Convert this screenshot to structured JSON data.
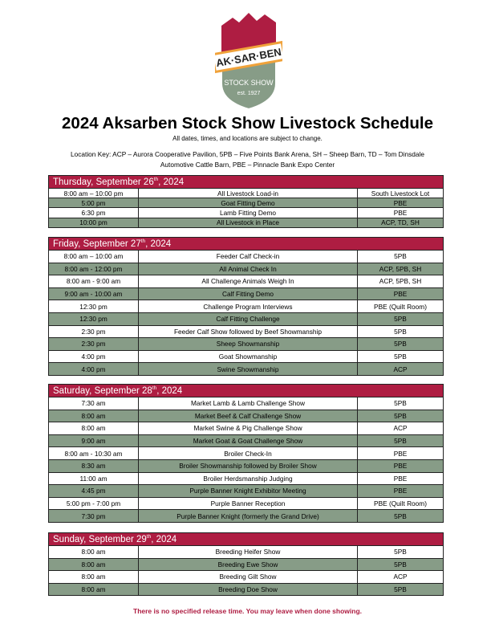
{
  "logo": {
    "text": "AK-SAR-BEN",
    "line2": "STOCK SHOW",
    "line3": "est. 1927",
    "colors": {
      "red": "#ae1d42",
      "green": "#879c87",
      "orange": "#f0a23a"
    }
  },
  "title": "2024 Aksarben Stock Show Livestock Schedule",
  "subtitle": "All dates, times, and locations are subject to change.",
  "location_key": {
    "line1": "Location Key: ACP – Aurora Cooperative Pavilion, 5PB – Five Points Bank Arena, SH – Sheep Barn, TD – Tom Dinsdale",
    "line2": "Automotive Cattle Barn, PBE – Pinnacle Bank Expo Center"
  },
  "days": [
    {
      "name": "Thursday, September 26",
      "sup": "th",
      "year": ", 2024",
      "rows": [
        {
          "time": "8:00 am – 10:00 pm",
          "event": "All Livestock Load-in",
          "location": "South Livestock Lot"
        },
        {
          "time": "5:00 pm",
          "event": "Goat Fitting Demo",
          "location": "PBE"
        },
        {
          "time": "6:30 pm",
          "event": "Lamb Fitting Demo",
          "location": "PBE"
        },
        {
          "time": "10:00 pm",
          "event": "All Livestock in Place",
          "location": "ACP, TD, SH"
        }
      ]
    },
    {
      "name": "Friday, September 27",
      "sup": "th",
      "year": ", 2024",
      "rows": [
        {
          "time": "8:00 am – 10:00 am",
          "event": "Feeder Calf Check-in",
          "location": "5PB"
        },
        {
          "time": "8:00 am - 12:00 pm",
          "event": "All Animal Check In",
          "location": "ACP, 5PB, SH"
        },
        {
          "time": "8:00 am - 9:00 am",
          "event": "All Challenge Animals Weigh In",
          "location": "ACP, 5PB, SH"
        },
        {
          "time": "9:00 am - 10:00 am",
          "event": "Calf Fitting Demo",
          "location": "PBE"
        },
        {
          "time": "12:30 pm",
          "event": "Challenge Program Interviews",
          "location": "PBE (Quilt Room)"
        },
        {
          "time": "12:30 pm",
          "event": "Calf Fitting Challenge",
          "location": "5PB"
        },
        {
          "time": "2:30 pm",
          "event": "Feeder Calf Show followed by Beef Showmanship",
          "location": "5PB"
        },
        {
          "time": "2:30 pm",
          "event": "Sheep Showmanship",
          "location": "5PB"
        },
        {
          "time": "4:00 pm",
          "event": "Goat Showmanship",
          "location": "5PB"
        },
        {
          "time": "4:00 pm",
          "event": "Swine Showmanship",
          "location": "ACP"
        }
      ]
    },
    {
      "name": "Saturday, September 28",
      "sup": "th",
      "year": ", 2024",
      "rows": [
        {
          "time": "7:30 am",
          "event": "Market Lamb & Lamb Challenge Show",
          "location": "5PB"
        },
        {
          "time": "8:00 am",
          "event": "Market Beef & Calf Challenge Show",
          "location": "5PB"
        },
        {
          "time": "8:00 am",
          "event": "Market Swine & Pig Challenge Show",
          "location": "ACP"
        },
        {
          "time": "9:00 am",
          "event": "Market Goat & Goat Challenge Show",
          "location": "5PB"
        },
        {
          "time": "8:00 am - 10:30 am",
          "event": "Broiler Check-In",
          "location": "PBE"
        },
        {
          "time": "8:30 am",
          "event": "Broiler Showmanship followed by Broiler Show",
          "location": "PBE"
        },
        {
          "time": "11:00 am",
          "event": "Broiler Herdsmanship Judging",
          "location": "PBE"
        },
        {
          "time": "4:45 pm",
          "event": "Purple Banner Knight Exhibitor Meeting",
          "location": "PBE"
        },
        {
          "time": "5:00 pm - 7:00 pm",
          "event": "Purple Banner Reception",
          "location": "PBE (Quilt Room)"
        },
        {
          "time": "7:30 pm",
          "event": "Purple Banner Knight (formerly the Grand Drive)",
          "location": "5PB"
        }
      ]
    },
    {
      "name": "Sunday, September 29",
      "sup": "th",
      "year": ", 2024",
      "rows": [
        {
          "time": "8:00 am",
          "event": "Breeding Heifer Show",
          "location": "5PB"
        },
        {
          "time": "8:00 am",
          "event": "Breeding Ewe Show",
          "location": "5PB"
        },
        {
          "time": "8:00 am",
          "event": "Breeding Gilt Show",
          "location": "ACP"
        },
        {
          "time": "8:00 am",
          "event": "Breeding Doe Show",
          "location": "5PB"
        }
      ]
    }
  ],
  "footer": "There is no specified release time. You may leave when done showing."
}
